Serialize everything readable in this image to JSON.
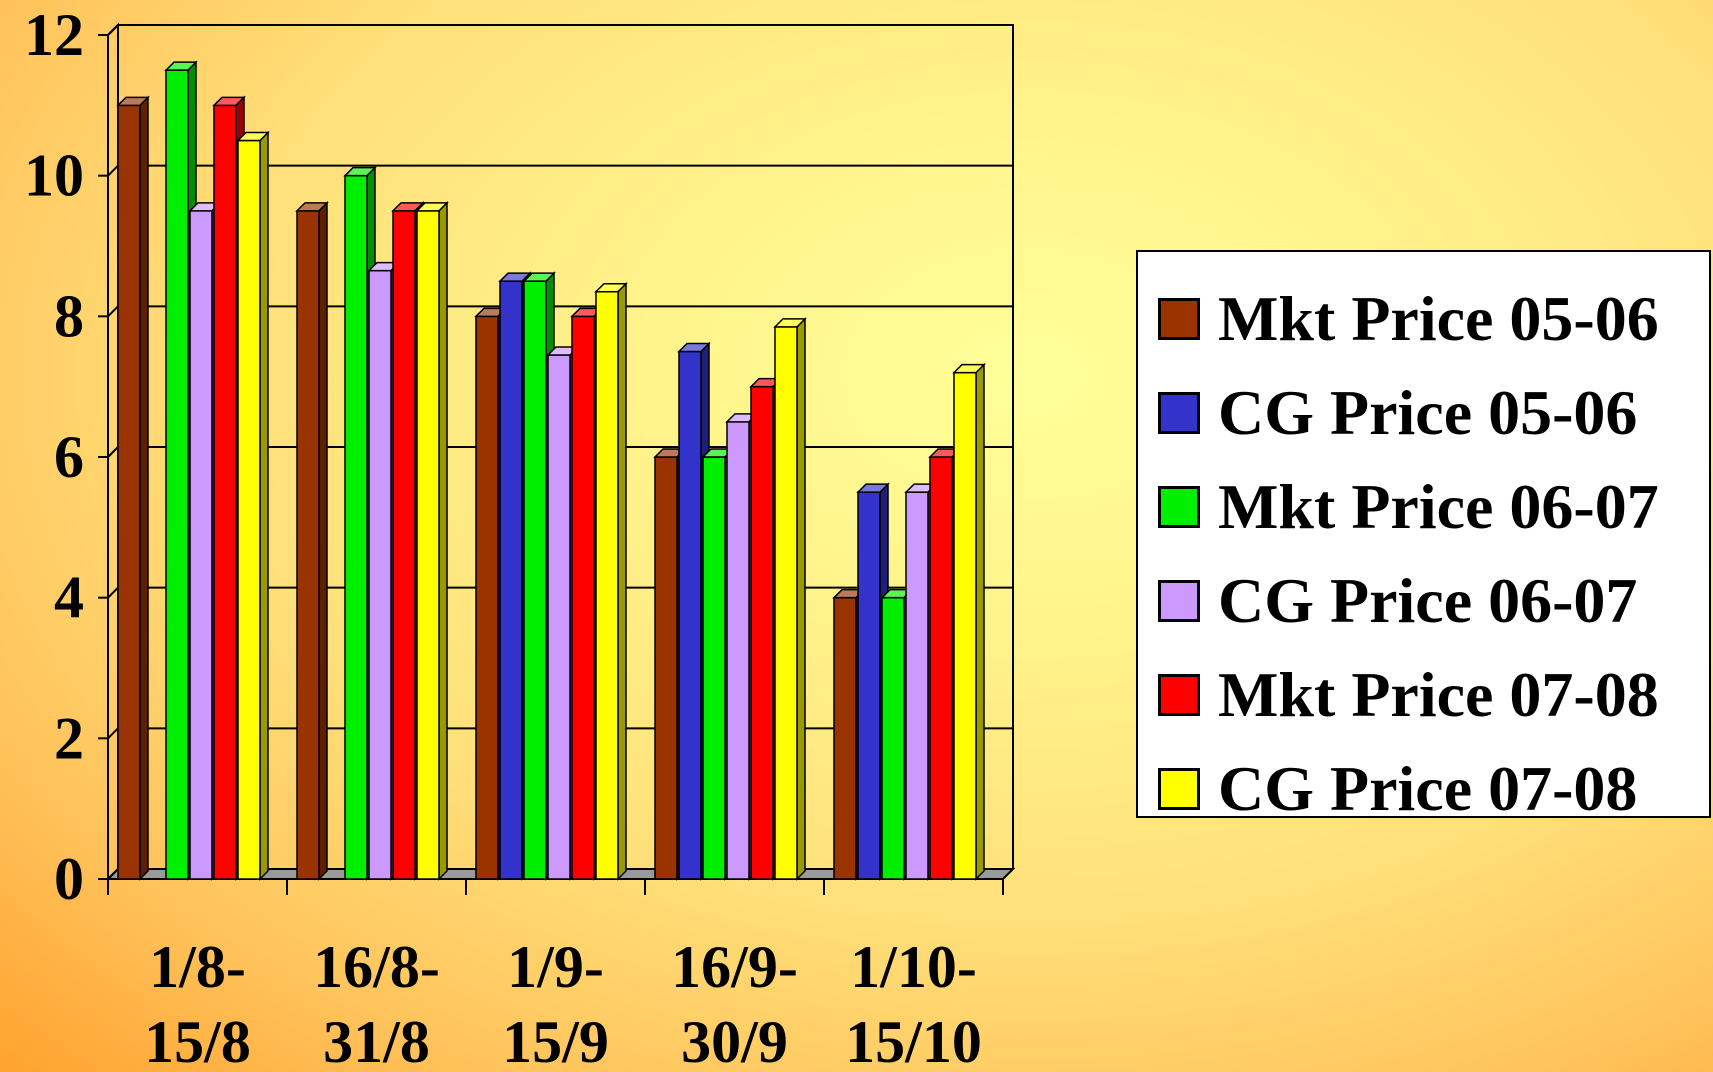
{
  "chart_data": {
    "type": "bar",
    "categories": [
      [
        "1/8-",
        "15/8"
      ],
      [
        "16/8-",
        "31/8"
      ],
      [
        "1/9-",
        "15/9"
      ],
      [
        "16/9-",
        "30/9"
      ],
      [
        "1/10-",
        "15/10"
      ]
    ],
    "ylim": [
      0,
      12
    ],
    "yticks": [
      0,
      2,
      4,
      6,
      8,
      10,
      12
    ],
    "grid": true,
    "legend_position": "right",
    "series": [
      {
        "name": "Mkt Price 05-06",
        "color": "#993300",
        "values": [
          11,
          9.5,
          8,
          6,
          4
        ]
      },
      {
        "name": "CG Price 05-06",
        "color": "#3333cc",
        "values": [
          null,
          null,
          8.5,
          7.5,
          5.5
        ]
      },
      {
        "name": "Mkt Price 06-07",
        "color": "#00ee00",
        "values": [
          11.5,
          10,
          8.5,
          6,
          4
        ]
      },
      {
        "name": "CG Price 06-07",
        "color": "#cc99ff",
        "values": [
          9.5,
          8.65,
          7.45,
          6.5,
          5.5
        ]
      },
      {
        "name": "Mkt Price 07-08",
        "color": "#ff0000",
        "values": [
          11,
          9.5,
          8,
          7,
          6
        ]
      },
      {
        "name": "CG Price 07-08",
        "color": "#ffff00",
        "values": [
          10.5,
          9.5,
          8.35,
          7.85,
          7.2
        ]
      }
    ]
  }
}
